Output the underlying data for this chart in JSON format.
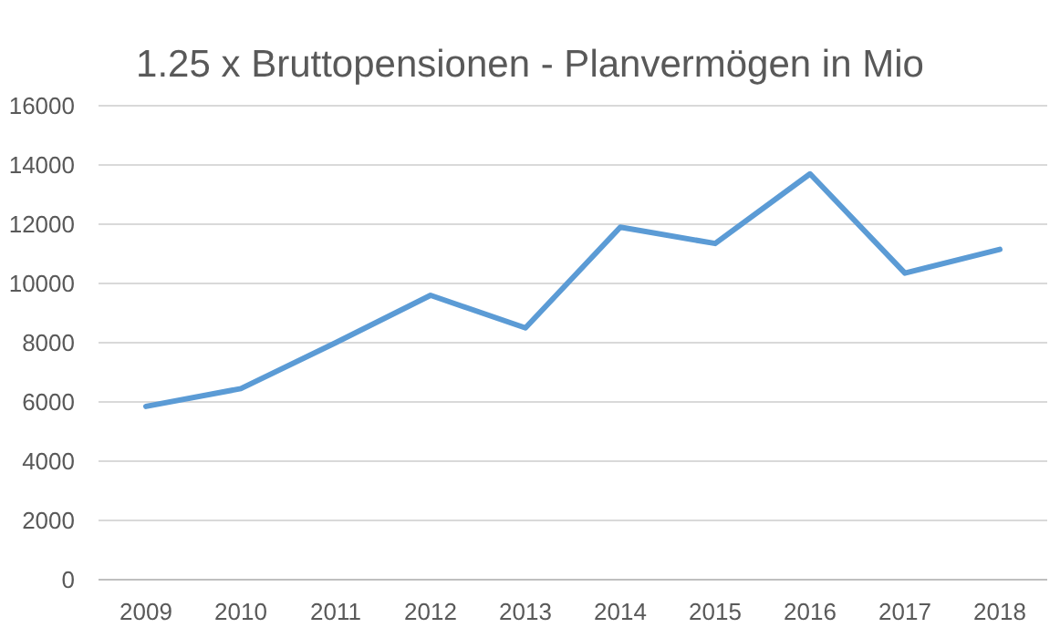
{
  "chart_data": {
    "type": "line",
    "title": "1.25 x Bruttopensionen - Planvermögen in Mio",
    "categories": [
      "2009",
      "2010",
      "2011",
      "2012",
      "2013",
      "2014",
      "2015",
      "2016",
      "2017",
      "2018"
    ],
    "series": [
      {
        "color": "#5b9bd5",
        "values": [
          5850,
          6450,
          8000,
          9600,
          8500,
          11900,
          11350,
          13700,
          10350,
          11150
        ]
      }
    ],
    "ylim": [
      0,
      16000
    ],
    "yticks": [
      0,
      2000,
      4000,
      6000,
      8000,
      10000,
      12000,
      14000,
      16000
    ],
    "grid": "y",
    "marker": "none",
    "line_style": "solid"
  }
}
